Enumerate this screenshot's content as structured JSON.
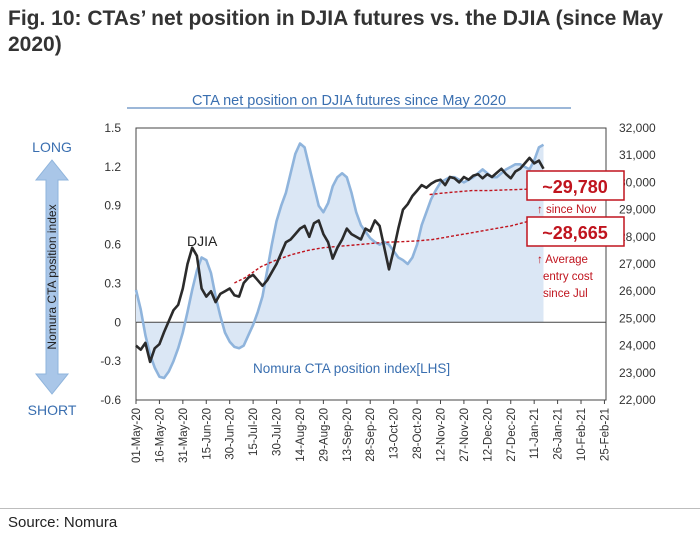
{
  "figure_title": "Fig. 10: CTAs’ net position in DJIA futures vs. the DJIA (since May 2020)",
  "source": "Source: Nomura",
  "colors": {
    "cta_line": "#8fb4dc",
    "cta_fill": "#dbe7f5",
    "djia_line": "#2b2b2b",
    "entry_cost": "#c0141e",
    "chart_title": "#3a6fb0",
    "long_short": "#3a6fb0",
    "arrow": "#a9c6e8"
  },
  "chart_data": {
    "type": "line",
    "title": "CTA net position on DJIA futures since May 2020",
    "left_axis_label": "Nomura CTA position index",
    "long_label": "LONG",
    "short_label": "SHORT",
    "ylim_left": [
      -0.6,
      1.5
    ],
    "ylim_right": [
      22000,
      32000
    ],
    "yticks_left": [
      "1.5",
      "1.2",
      "0.9",
      "0.6",
      "0.3",
      "0",
      "-0.3",
      "-0.6"
    ],
    "yticks_right": [
      "32,000",
      "31,000",
      "30,000",
      "29,000",
      "28,000",
      "27,000",
      "26,000",
      "25,000",
      "24,000",
      "23,000",
      "22,000"
    ],
    "x_categories": [
      "01-May-20",
      "16-May-20",
      "31-May-20",
      "15-Jun-20",
      "30-Jun-20",
      "15-Jul-20",
      "30-Jul-20",
      "14-Aug-20",
      "29-Aug-20",
      "13-Sep-20",
      "28-Sep-20",
      "13-Oct-20",
      "28-Oct-20",
      "12-Nov-20",
      "27-Nov-20",
      "12-Dec-20",
      "27-Dec-20",
      "11-Jan-21",
      "26-Jan-21",
      "10-Feb-21",
      "25-Feb-21"
    ],
    "series": [
      {
        "name": "Nomura CTA position index[LHS]",
        "axis": "left",
        "x_day": [
          0,
          3,
          6,
          9,
          12,
          15,
          18,
          21,
          24,
          27,
          30,
          33,
          36,
          39,
          42,
          45,
          48,
          51,
          54,
          57,
          60,
          63,
          66,
          69,
          72,
          75,
          78,
          81,
          84,
          87,
          90,
          93,
          96,
          99,
          102,
          105,
          108,
          111,
          114,
          117,
          120,
          123,
          126,
          129,
          132,
          135,
          138,
          141,
          144,
          147,
          150,
          153,
          156,
          159,
          162,
          165,
          168,
          171,
          174,
          177,
          180,
          183,
          186,
          189,
          192,
          195,
          198,
          201,
          204,
          207,
          210,
          213,
          216,
          219,
          222,
          225,
          228,
          231,
          234,
          237,
          240,
          243,
          246,
          249,
          252,
          255,
          258,
          261
        ],
        "y": [
          0.25,
          0.1,
          -0.1,
          -0.25,
          -0.35,
          -0.42,
          -0.43,
          -0.38,
          -0.3,
          -0.2,
          -0.08,
          0.08,
          0.25,
          0.4,
          0.5,
          0.48,
          0.38,
          0.2,
          0.05,
          -0.08,
          -0.15,
          -0.19,
          -0.2,
          -0.18,
          -0.1,
          -0.02,
          0.08,
          0.2,
          0.4,
          0.6,
          0.78,
          0.9,
          1.0,
          1.15,
          1.3,
          1.38,
          1.35,
          1.2,
          1.05,
          0.9,
          0.85,
          0.92,
          1.05,
          1.12,
          1.15,
          1.12,
          1.0,
          0.85,
          0.75,
          0.7,
          0.65,
          0.62,
          0.6,
          0.62,
          0.6,
          0.55,
          0.5,
          0.48,
          0.45,
          0.5,
          0.6,
          0.75,
          0.85,
          0.95,
          1.02,
          1.08,
          1.1,
          1.12,
          1.12,
          1.1,
          1.08,
          1.1,
          1.12,
          1.15,
          1.18,
          1.15,
          1.12,
          1.12,
          1.15,
          1.18,
          1.2,
          1.22,
          1.22,
          1.2,
          1.18,
          1.25,
          1.35,
          1.37
        ]
      },
      {
        "name": "DJIA",
        "axis": "right",
        "x_day": [
          0,
          3,
          6,
          9,
          12,
          15,
          18,
          21,
          24,
          27,
          30,
          33,
          36,
          39,
          42,
          45,
          48,
          51,
          54,
          57,
          60,
          63,
          66,
          69,
          72,
          75,
          78,
          81,
          84,
          87,
          90,
          93,
          96,
          99,
          102,
          105,
          108,
          111,
          114,
          117,
          120,
          123,
          126,
          129,
          132,
          135,
          138,
          141,
          144,
          147,
          150,
          153,
          156,
          159,
          162,
          165,
          168,
          171,
          174,
          177,
          180,
          183,
          186,
          189,
          192,
          195,
          198,
          201,
          204,
          207,
          210,
          213,
          216,
          219,
          222,
          225,
          228,
          231,
          234,
          237,
          240,
          243,
          246,
          249,
          252,
          255,
          258,
          261
        ],
        "y": [
          24000,
          23850,
          24100,
          23400,
          23900,
          24050,
          24500,
          24900,
          25300,
          25500,
          26100,
          27000,
          27600,
          27300,
          26100,
          25800,
          26000,
          25600,
          25900,
          26000,
          26100,
          25850,
          25800,
          26300,
          26500,
          26600,
          26400,
          26200,
          26400,
          26700,
          27000,
          27400,
          27800,
          27900,
          28100,
          28300,
          28400,
          28000,
          28500,
          28600,
          28100,
          27800,
          27200,
          27600,
          27900,
          28300,
          28100,
          28000,
          27900,
          28300,
          28200,
          28600,
          28400,
          27600,
          26800,
          27500,
          28300,
          29000,
          29200,
          29500,
          29700,
          29900,
          29800,
          29950,
          30050,
          30100,
          29900,
          30200,
          30150,
          30000,
          30200,
          30100,
          30250,
          30300,
          30150,
          30300,
          30200,
          30350,
          30500,
          30300,
          30150,
          30400,
          30500,
          30700,
          30900,
          30700,
          30800,
          30500
        ]
      },
      {
        "name": "Average entry cost since Nov",
        "axis": "right",
        "style": "dashed",
        "x_day": [
          188,
          195,
          205,
          215,
          225,
          235,
          245,
          255,
          261
        ],
        "y": [
          29550,
          29600,
          29650,
          29700,
          29700,
          29720,
          29740,
          29760,
          29780
        ]
      },
      {
        "name": "Average entry cost since Jul",
        "axis": "right",
        "style": "dashed",
        "x_day": [
          63,
          70,
          80,
          90,
          100,
          110,
          120,
          130,
          140,
          150,
          160,
          170,
          180,
          190,
          200,
          210,
          220,
          230,
          240,
          250,
          261
        ],
        "y": [
          26300,
          26500,
          26900,
          27150,
          27350,
          27500,
          27600,
          27650,
          27700,
          27750,
          27800,
          27820,
          27850,
          27900,
          28000,
          28100,
          28200,
          28300,
          28400,
          28550,
          28665
        ]
      }
    ],
    "labels": {
      "djia": "DJIA",
      "cta_index": "Nomura CTA position index[LHS]"
    },
    "annotations": [
      {
        "value": "~29,780",
        "note": "↑ since Nov"
      },
      {
        "value": "~28,665",
        "note_lines": [
          "↑ Average",
          "entry cost",
          "since Jul"
        ]
      }
    ]
  }
}
